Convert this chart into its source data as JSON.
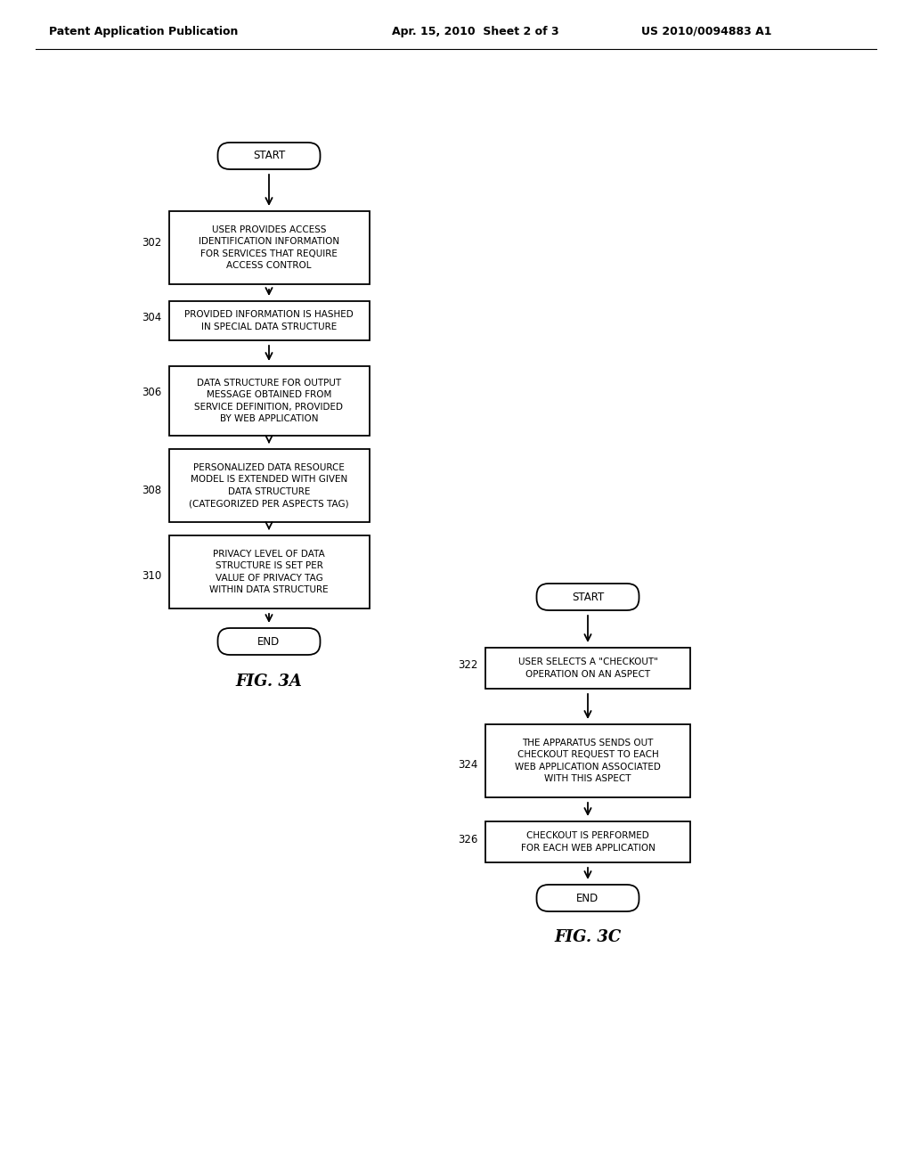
{
  "header_left": "Patent Application Publication",
  "header_mid": "Apr. 15, 2010  Sheet 2 of 3",
  "header_right": "US 2010/0094883 A1",
  "fig3a": {
    "title": "FIG. 3A",
    "boxes": [
      {
        "label": "302",
        "text": "USER PROVIDES ACCESS\nIDENTIFICATION INFORMATION\nFOR SERVICES THAT REQUIRE\nACCESS CONTROL"
      },
      {
        "label": "304",
        "text": "PROVIDED INFORMATION IS HASHED\nIN SPECIAL DATA STRUCTURE"
      },
      {
        "label": "306",
        "text": "DATA STRUCTURE FOR OUTPUT\nMESSAGE OBTAINED FROM\nSERVICE DEFINITION, PROVIDED\nBY WEB APPLICATION"
      },
      {
        "label": "308",
        "text": "PERSONALIZED DATA RESOURCE\nMODEL IS EXTENDED WITH GIVEN\nDATA STRUCTURE\n(CATEGORIZED PER ASPECTS TAG)"
      },
      {
        "label": "310",
        "text": "PRIVACY LEVEL OF DATA\nSTRUCTURE IS SET PER\nVALUE OF PRIVACY TAG\nWITHIN DATA STRUCTURE"
      }
    ]
  },
  "fig3c": {
    "title": "FIG. 3C",
    "boxes": [
      {
        "label": "322",
        "text": "USER SELECTS A \"CHECKOUT\"\nOPERATION ON AN ASPECT"
      },
      {
        "label": "324",
        "text": "THE APPARATUS SENDS OUT\nCHECKOUT REQUEST TO EACH\nWEB APPLICATION ASSOCIATED\nWITH THIS ASPECT"
      },
      {
        "label": "326",
        "text": "CHECKOUT IS PERFORMED\nFOR EACH WEB APPLICATION"
      }
    ]
  },
  "bg_color": "#ffffff",
  "font_size": 7.5,
  "label_font_size": 8.5,
  "header_font_size": 9,
  "title_font_size": 13
}
